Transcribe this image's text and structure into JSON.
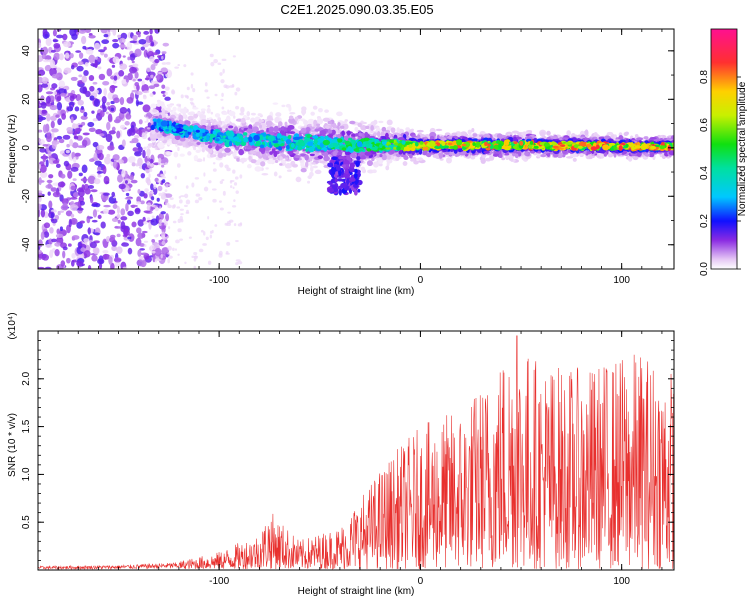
{
  "title": "C2E1.2025.090.03.35.E05",
  "colors": {
    "snr_line": "#e8302e",
    "axis": "#000000",
    "background": "#ffffff"
  },
  "chart_data": [
    {
      "type": "heatmap",
      "xlabel": "Height of straight line (km)",
      "ylabel": "Frequency (Hz)",
      "xlim": [
        -190,
        126
      ],
      "ylim": [
        -50,
        49
      ],
      "xticks": [
        -100,
        0,
        100
      ],
      "xtick_labels": [
        "-100",
        "0",
        "100"
      ],
      "yticks": [
        -40,
        -20,
        0,
        20,
        40
      ],
      "ytick_labels": [
        "-40",
        "-20",
        "0",
        "20",
        "40"
      ],
      "colorbar": {
        "label": "Normalized spectral amplitude",
        "range": [
          0,
          1
        ],
        "ticks": [
          0.0,
          0.2,
          0.4,
          0.6,
          0.8
        ],
        "tick_labels": [
          "0.0",
          "0.2",
          "0.4",
          "0.6",
          "0.8"
        ]
      },
      "band": {
        "noise_region_x": [
          -190,
          -133
        ],
        "noise_amplitude": 0.12,
        "centerline": [
          [
            -133,
            10
          ],
          [
            -100,
            4
          ],
          [
            -60,
            2
          ],
          [
            -30,
            1
          ],
          [
            0,
            1
          ],
          [
            50,
            1
          ],
          [
            126,
            0.5
          ]
        ],
        "halfwidth": [
          [
            -133,
            6
          ],
          [
            -100,
            7
          ],
          [
            -60,
            10
          ],
          [
            -30,
            8
          ],
          [
            0,
            4
          ],
          [
            50,
            4
          ],
          [
            126,
            3
          ]
        ],
        "amplitude": [
          [
            -133,
            0.35
          ],
          [
            -100,
            0.4
          ],
          [
            -60,
            0.45
          ],
          [
            -30,
            0.5
          ],
          [
            -10,
            0.6
          ],
          [
            0,
            0.8
          ],
          [
            126,
            0.85
          ]
        ]
      }
    },
    {
      "type": "line",
      "xlabel": "Height of straight line (km)",
      "ylabel": "SNR (10 * v/v)",
      "scale_label": "(x10⁴)",
      "xlim": [
        -190,
        126
      ],
      "ylim": [
        0,
        2.5
      ],
      "xticks": [
        -100,
        0,
        100
      ],
      "xtick_labels": [
        "-100",
        "0",
        "100"
      ],
      "yticks": [
        0.5,
        1.0,
        1.5,
        2.0
      ],
      "ytick_labels": [
        "0.5",
        "1.0",
        "1.5",
        "2.0"
      ],
      "envelope": [
        [
          -190,
          0.04
        ],
        [
          -150,
          0.05
        ],
        [
          -120,
          0.08
        ],
        [
          -100,
          0.18
        ],
        [
          -80,
          0.38
        ],
        [
          -75,
          0.62
        ],
        [
          -60,
          0.3
        ],
        [
          -40,
          0.45
        ],
        [
          -30,
          0.75
        ],
        [
          -20,
          1.05
        ],
        [
          -10,
          1.3
        ],
        [
          0,
          1.5
        ],
        [
          20,
          1.7
        ],
        [
          35,
          2.05
        ],
        [
          45,
          2.45
        ],
        [
          60,
          2.2
        ],
        [
          80,
          2.1
        ],
        [
          100,
          2.25
        ],
        [
          110,
          2.3
        ],
        [
          126,
          2.1
        ]
      ],
      "peak": {
        "x": 48,
        "value": 2.45
      }
    }
  ]
}
